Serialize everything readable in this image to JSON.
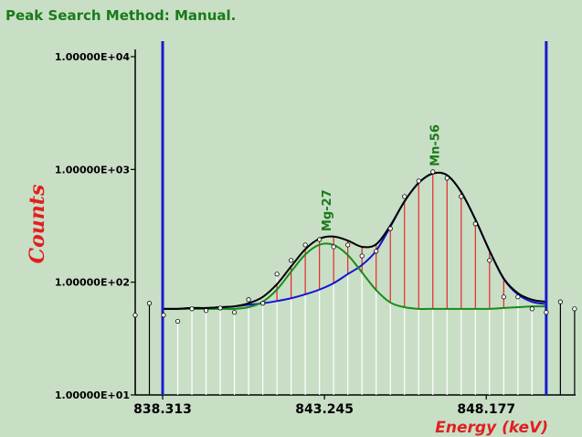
{
  "chart_data": {
    "type": "line",
    "title": "Peak Search Method: Manual.",
    "x_label": "Energy (keV)",
    "y_label": "Counts",
    "log_y": true,
    "xlim": [
      837.477,
      850.9
    ],
    "ylim": [
      10,
      10000
    ],
    "xticks": [
      838.313,
      843.245,
      848.177
    ],
    "yticks": [
      {
        "value": 10000,
        "label": "1.00000E+04"
      },
      {
        "value": 1000,
        "label": "1.00000E+03"
      },
      {
        "value": 100,
        "label": "1.00000E+02"
      },
      {
        "value": 10,
        "label": "1.00000E+01"
      }
    ],
    "x": [
      837.477,
      837.909,
      838.341,
      838.773,
      839.205,
      839.637,
      840.069,
      840.501,
      840.933,
      841.365,
      841.797,
      842.229,
      842.661,
      843.093,
      843.525,
      843.957,
      844.389,
      844.821,
      845.253,
      845.685,
      846.117,
      846.549,
      846.981,
      847.413,
      847.845,
      848.277,
      848.709,
      849.141,
      849.573,
      850.005,
      850.437,
      850.869
    ],
    "values": [
      51,
      65,
      51,
      45,
      58,
      56,
      59,
      54,
      70,
      65,
      118,
      156,
      214,
      239,
      206,
      214,
      171,
      188,
      299,
      575,
      790,
      953,
      836,
      575,
      329,
      156,
      74,
      74,
      58,
      54,
      67,
      58
    ],
    "markers": [
      838.313,
      850.005
    ],
    "marker_color": "#1a1acc",
    "fit_x": [
      838.341,
      838.773,
      839.205,
      839.637,
      840.069,
      840.501,
      840.933,
      841.365,
      841.797,
      842.229,
      842.661,
      843.093,
      843.525,
      843.957,
      844.389,
      844.821,
      845.253,
      845.685,
      846.117,
      846.549,
      846.981,
      847.413,
      847.845,
      848.277,
      848.709,
      849.141,
      849.573,
      850.005
    ],
    "fits": [
      {
        "color": "#000000",
        "values": [
          58,
          58,
          59,
          59,
          60,
          61,
          65,
          74,
          96,
          138,
          196,
          243,
          254,
          234,
          206,
          217,
          318,
          522,
          760,
          920,
          890,
          630,
          360,
          190,
          108,
          80,
          70,
          67
        ]
      },
      {
        "color": "#1a8a1a",
        "values": [
          58,
          58,
          58,
          58,
          58,
          58,
          60,
          67,
          86,
          124,
          176,
          215,
          214,
          174,
          122,
          85,
          66,
          60,
          58,
          58,
          58,
          58,
          58,
          58,
          59,
          60,
          61,
          61
        ]
      },
      {
        "color": "#1414d2",
        "values": [
          58,
          58,
          59,
          59,
          60,
          61,
          63,
          65,
          68,
          72,
          78,
          86,
          98,
          118,
          142,
          190,
          310,
          520,
          760,
          920,
          890,
          630,
          360,
          190,
          107,
          78,
          67,
          64
        ]
      }
    ],
    "peak_color": "#e02020",
    "peaks": [
      {
        "label": "Mg-27",
        "x": 843.3
      },
      {
        "label": "Mn-56",
        "x": 846.6
      }
    ]
  }
}
